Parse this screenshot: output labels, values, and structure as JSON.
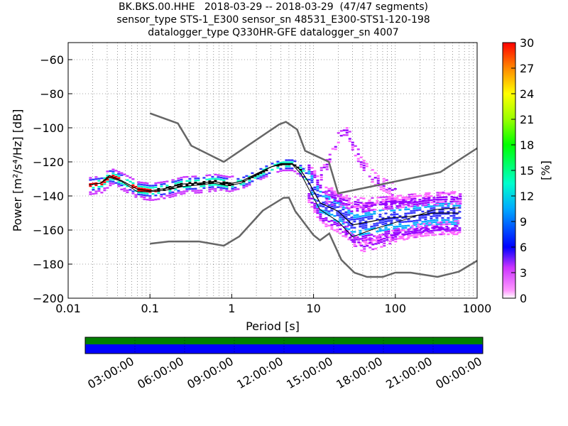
{
  "chart_data": {
    "type": "heatmap",
    "title_lines": [
      "BK.BKS.00.HHE   2018-03-29 -- 2018-03-29  (47/47 segments)",
      "sensor_type STS-1_E300 sensor_sn 48531_E300-STS1-120-198",
      "datalogger_type Q330HR-GFE datalogger_sn 4007"
    ],
    "xlabel": "Period [s]",
    "ylabel": "Power [m²/s⁴/Hz] [dB]",
    "x_scale": "log",
    "xlim": [
      0.01,
      1000
    ],
    "ylim": [
      -200,
      -50
    ],
    "x_ticks": [
      {
        "value": 0.01,
        "label": "0.01"
      },
      {
        "value": 0.1,
        "label": "0.1"
      },
      {
        "value": 1,
        "label": "1"
      },
      {
        "value": 10,
        "label": "10"
      },
      {
        "value": 100,
        "label": "100"
      },
      {
        "value": 1000,
        "label": "1000"
      }
    ],
    "y_ticks": [
      {
        "value": -60,
        "label": "−60"
      },
      {
        "value": -80,
        "label": "−80"
      },
      {
        "value": -100,
        "label": "−100"
      },
      {
        "value": -120,
        "label": "−120"
      },
      {
        "value": -140,
        "label": "−140"
      },
      {
        "value": -160,
        "label": "−160"
      },
      {
        "value": -180,
        "label": "−180"
      },
      {
        "value": -200,
        "label": "−200"
      }
    ],
    "grid": true,
    "colorbar": {
      "label": "[%]",
      "min": 0,
      "max": 30,
      "ticks": [
        "0",
        "3",
        "6",
        "9",
        "12",
        "15",
        "18",
        "21",
        "24",
        "27",
        "30"
      ]
    },
    "noise_models": [
      {
        "name": "NHNM",
        "points": [
          [
            0.1,
            -91.5
          ],
          [
            0.22,
            -97.4
          ],
          [
            0.32,
            -110.5
          ],
          [
            0.8,
            -120
          ],
          [
            3.8,
            -98
          ],
          [
            4.6,
            -96.5
          ],
          [
            6.3,
            -101
          ],
          [
            7.9,
            -113.5
          ],
          [
            15.4,
            -120
          ],
          [
            20,
            -138.5
          ],
          [
            354.8,
            -126
          ],
          [
            1000,
            -112
          ]
        ]
      },
      {
        "name": "NLNM",
        "points": [
          [
            0.1,
            -168
          ],
          [
            0.17,
            -166.7
          ],
          [
            0.4,
            -166.7
          ],
          [
            0.8,
            -169.2
          ],
          [
            1.24,
            -163.7
          ],
          [
            2.4,
            -148.6
          ],
          [
            4.3,
            -141.1
          ],
          [
            5,
            -141
          ],
          [
            6,
            -149
          ],
          [
            10,
            -163
          ],
          [
            12,
            -166
          ],
          [
            15.6,
            -162
          ],
          [
            21.9,
            -177.5
          ],
          [
            31.6,
            -185
          ],
          [
            45,
            -187.5
          ],
          [
            70,
            -187.5
          ],
          [
            100,
            -185
          ],
          [
            154,
            -185
          ],
          [
            328,
            -187.5
          ],
          [
            600,
            -184.4
          ],
          [
            1000,
            -178
          ]
        ]
      }
    ],
    "mean_curve": [
      [
        0.018,
        -133.5
      ],
      [
        0.025,
        -132.5
      ],
      [
        0.032,
        -128
      ],
      [
        0.045,
        -131
      ],
      [
        0.07,
        -136
      ],
      [
        0.1,
        -137
      ],
      [
        0.16,
        -135.5
      ],
      [
        0.25,
        -133
      ],
      [
        0.4,
        -132.5
      ],
      [
        0.6,
        -131.5
      ],
      [
        0.9,
        -133
      ],
      [
        1.3,
        -131.5
      ],
      [
        2,
        -127
      ],
      [
        3,
        -123
      ],
      [
        4,
        -121
      ],
      [
        5.5,
        -121
      ],
      [
        7,
        -125
      ],
      [
        9,
        -133
      ],
      [
        12,
        -144
      ],
      [
        20,
        -149
      ],
      [
        30,
        -157
      ],
      [
        50,
        -155
      ],
      [
        80,
        -153
      ],
      [
        150,
        -152
      ],
      [
        300,
        -150
      ],
      [
        600,
        -150
      ]
    ],
    "mode_curve": [
      [
        0.018,
        -133.5
      ],
      [
        0.025,
        -132.5
      ],
      [
        0.032,
        -129
      ],
      [
        0.045,
        -131.5
      ],
      [
        0.07,
        -137.5
      ],
      [
        0.1,
        -137.5
      ],
      [
        0.16,
        -136.5
      ],
      [
        0.25,
        -134.5
      ],
      [
        0.4,
        -133.5
      ],
      [
        0.6,
        -132.5
      ],
      [
        0.9,
        -134
      ],
      [
        1.3,
        -132.5
      ],
      [
        2,
        -127.5
      ],
      [
        3,
        -123
      ],
      [
        4,
        -121.5
      ],
      [
        5.5,
        -121.5
      ],
      [
        7,
        -127
      ],
      [
        9,
        -137
      ],
      [
        12,
        -148
      ],
      [
        20,
        -155
      ],
      [
        30,
        -164
      ],
      [
        50,
        -160
      ],
      [
        80,
        -157
      ],
      [
        150,
        -153
      ],
      [
        300,
        -148
      ],
      [
        600,
        -147
      ]
    ],
    "histogram_bands": [
      {
        "name": "low-lobe",
        "points": [
          [
            23,
            -158
          ],
          [
            30,
            -166
          ],
          [
            40,
            -168
          ],
          [
            60,
            -166
          ],
          [
            100,
            -162
          ],
          [
            200,
            -159
          ],
          [
            600,
            -157
          ]
        ]
      },
      {
        "name": "upper-lobe",
        "points": [
          [
            14,
            -140
          ],
          [
            22,
            -142
          ],
          [
            40,
            -144
          ],
          [
            80,
            -143
          ],
          [
            200,
            -141
          ],
          [
            600,
            -140
          ]
        ]
      },
      {
        "name": "microseism-spike",
        "points": [
          [
            12,
            -126
          ],
          [
            16,
            -115
          ],
          [
            20,
            -104
          ],
          [
            24,
            -100
          ],
          [
            30,
            -110
          ],
          [
            40,
            -122
          ],
          [
            60,
            -131
          ],
          [
            100,
            -136
          ]
        ]
      }
    ],
    "time_axis": {
      "ticks": [
        "03:00:00",
        "06:00:00",
        "09:00:00",
        "12:00:00",
        "15:00:00",
        "18:00:00",
        "21:00:00",
        "00:00:00"
      ],
      "coverage_color": "#0000ff",
      "gap_free_color": "#008000"
    }
  }
}
